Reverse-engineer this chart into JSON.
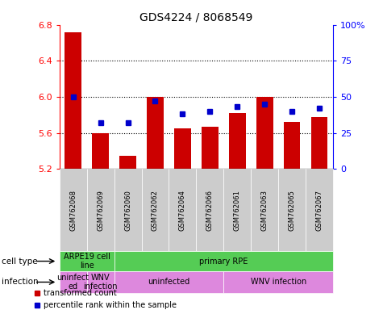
{
  "title": "GDS4224 / 8068549",
  "samples": [
    "GSM762068",
    "GSM762069",
    "GSM762060",
    "GSM762062",
    "GSM762064",
    "GSM762066",
    "GSM762061",
    "GSM762063",
    "GSM762065",
    "GSM762067"
  ],
  "red_values": [
    6.72,
    5.6,
    5.35,
    6.0,
    5.65,
    5.67,
    5.82,
    6.0,
    5.72,
    5.78
  ],
  "blue_values": [
    50,
    32,
    32,
    47,
    38,
    40,
    43,
    45,
    40,
    42
  ],
  "ymin": 5.2,
  "ymax": 6.8,
  "yticks_left": [
    5.2,
    5.6,
    6.0,
    6.4,
    6.8
  ],
  "yticks_right": [
    0,
    25,
    50,
    75,
    100
  ],
  "ytick_labels_right": [
    "0",
    "25",
    "50",
    "75",
    "100%"
  ],
  "grid_values": [
    5.6,
    6.0,
    6.4
  ],
  "bar_color": "#cc0000",
  "dot_color": "#0000cc",
  "col_bg_color": "#cccccc",
  "plot_bg_color": "#ffffff",
  "cell_type_color": "#55cc55",
  "infection_color": "#dd88dd",
  "annotation_left": "cell type",
  "annotation_left2": "infection",
  "legend1": "transformed count",
  "legend2": "percentile rank within the sample",
  "bar_width": 0.6,
  "dot_size": 5
}
